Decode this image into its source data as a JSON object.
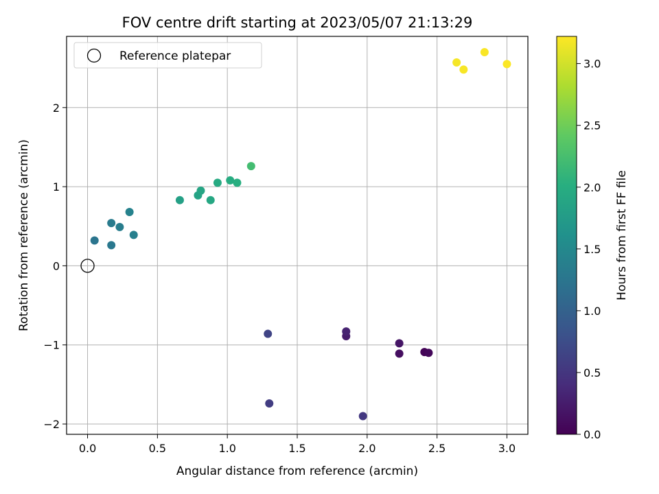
{
  "chart_data": {
    "type": "scatter",
    "title": "FOV centre drift starting at 2023/05/07 21:13:29",
    "xlabel": "Angular distance from reference (arcmin)",
    "ylabel": "Rotation from reference (arcmin)",
    "xlim": [
      -0.15,
      3.15
    ],
    "ylim": [
      -2.13,
      2.9
    ],
    "xticks": [
      0.0,
      0.5,
      1.0,
      1.5,
      2.0,
      2.5,
      3.0
    ],
    "xtick_labels": [
      "0.0",
      "0.5",
      "1.0",
      "1.5",
      "2.0",
      "2.5",
      "3.0"
    ],
    "yticks": [
      -2,
      -1,
      0,
      1,
      2
    ],
    "ytick_labels": [
      "−2",
      "−1",
      "0",
      "1",
      "2"
    ],
    "grid": true,
    "legend": {
      "placement": "upper-left",
      "entries": [
        {
          "label": "Reference platepar",
          "marker": "open-circle",
          "x": 0.0,
          "y": 0.0
        }
      ]
    },
    "colorbar": {
      "label": "Hours from first FF file",
      "colormap": "viridis",
      "range": [
        0.0,
        3.22
      ],
      "ticks": [
        0.0,
        0.5,
        1.0,
        1.5,
        2.0,
        2.5,
        3.0
      ],
      "tick_labels": [
        "0.0",
        "0.5",
        "1.0",
        "1.5",
        "2.0",
        "2.5",
        "3.0"
      ]
    },
    "points": [
      {
        "x": 2.41,
        "y": -1.09,
        "hours": 0.03
      },
      {
        "x": 2.44,
        "y": -1.1,
        "hours": 0.06
      },
      {
        "x": 2.23,
        "y": -1.11,
        "hours": 0.12
      },
      {
        "x": 2.23,
        "y": -0.98,
        "hours": 0.18
      },
      {
        "x": 1.85,
        "y": -0.89,
        "hours": 0.24
      },
      {
        "x": 1.85,
        "y": -0.83,
        "hours": 0.3
      },
      {
        "x": 1.97,
        "y": -1.9,
        "hours": 0.52
      },
      {
        "x": 1.3,
        "y": -1.74,
        "hours": 0.58
      },
      {
        "x": 1.29,
        "y": -0.86,
        "hours": 0.65
      },
      {
        "x": 0.05,
        "y": 0.32,
        "hours": 1.25
      },
      {
        "x": 0.17,
        "y": 0.26,
        "hours": 1.28
      },
      {
        "x": 0.17,
        "y": 0.54,
        "hours": 1.32
      },
      {
        "x": 0.23,
        "y": 0.49,
        "hours": 1.35
      },
      {
        "x": 0.33,
        "y": 0.39,
        "hours": 1.38
      },
      {
        "x": 0.3,
        "y": 0.68,
        "hours": 1.42
      },
      {
        "x": 0.66,
        "y": 0.83,
        "hours": 1.82
      },
      {
        "x": 0.79,
        "y": 0.89,
        "hours": 1.86
      },
      {
        "x": 0.81,
        "y": 0.95,
        "hours": 1.89
      },
      {
        "x": 0.88,
        "y": 0.83,
        "hours": 1.92
      },
      {
        "x": 0.93,
        "y": 1.05,
        "hours": 1.96
      },
      {
        "x": 1.02,
        "y": 1.08,
        "hours": 1.98
      },
      {
        "x": 1.07,
        "y": 1.05,
        "hours": 2.01
      },
      {
        "x": 1.17,
        "y": 1.26,
        "hours": 2.22
      },
      {
        "x": 2.64,
        "y": 2.57,
        "hours": 3.18
      },
      {
        "x": 2.69,
        "y": 2.48,
        "hours": 3.19
      },
      {
        "x": 2.84,
        "y": 2.7,
        "hours": 3.2
      },
      {
        "x": 3.0,
        "y": 2.55,
        "hours": 3.21
      }
    ]
  }
}
